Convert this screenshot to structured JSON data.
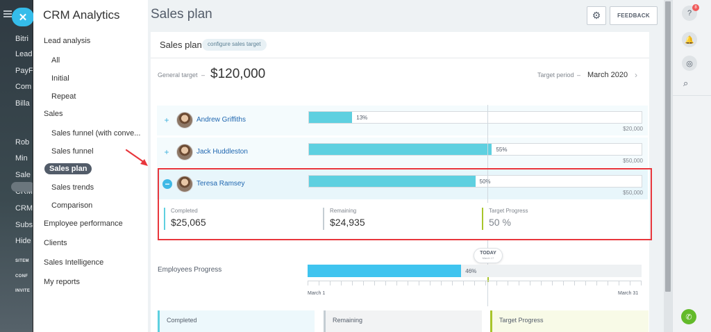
{
  "app": {
    "title": "CRM Analytics",
    "close_icon": "close-icon"
  },
  "background_menu": [
    {
      "label": "Bitri"
    },
    {
      "label": "Lead"
    },
    {
      "label": "PayF"
    },
    {
      "label": "Com"
    },
    {
      "label": "Billa"
    },
    {
      "label": "Rob"
    },
    {
      "label": "Min"
    },
    {
      "label": "Sale"
    },
    {
      "label": "CRM"
    },
    {
      "label": "CRM"
    },
    {
      "label": "Subs"
    },
    {
      "label": "Hide"
    },
    {
      "label": "SITEM"
    },
    {
      "label": "CONF"
    },
    {
      "label": "INVITE"
    }
  ],
  "sidebar": {
    "items": [
      {
        "label": "Lead analysis",
        "kind": "top"
      },
      {
        "label": "All",
        "kind": "sub"
      },
      {
        "label": "Initial",
        "kind": "sub"
      },
      {
        "label": "Repeat",
        "kind": "sub"
      },
      {
        "label": "Sales",
        "kind": "top"
      },
      {
        "label": "Sales funnel (with conve...",
        "kind": "sub"
      },
      {
        "label": "Sales funnel",
        "kind": "sub"
      },
      {
        "label": "Sales plan",
        "kind": "active"
      },
      {
        "label": "Sales trends",
        "kind": "sub"
      },
      {
        "label": "Comparison",
        "kind": "sub"
      },
      {
        "label": "Employee performance",
        "kind": "top"
      },
      {
        "label": "Clients",
        "kind": "top"
      },
      {
        "label": "Sales Intelligence",
        "kind": "top"
      },
      {
        "label": "My reports",
        "kind": "top"
      }
    ]
  },
  "header": {
    "page_title": "Sales plan",
    "feedback_label": "FEEDBACK",
    "settings_icon": "gear-icon"
  },
  "card": {
    "title": "Sales plan",
    "configure_label": "configure sales target",
    "general_target_label": "General target",
    "general_target_value": "$120,000",
    "target_period_label": "Target period",
    "target_period_value": "March 2020"
  },
  "employees": [
    {
      "name": "Andrew Griffiths",
      "percent_label": "13%",
      "progress": 13,
      "target": "$20,000",
      "expanded": false
    },
    {
      "name": "Jack Huddleston",
      "percent_label": "55%",
      "progress": 55,
      "target": "$50,000",
      "expanded": false
    },
    {
      "name": "Teresa Ramsey",
      "percent_label": "50%",
      "progress": 50,
      "target": "$50,000",
      "expanded": true
    }
  ],
  "selected_detail": {
    "completed_label": "Completed",
    "completed_value": "$25,065",
    "remaining_label": "Remaining",
    "remaining_value": "$24,935",
    "progress_label": "Target Progress",
    "progress_value": "50 %"
  },
  "today": {
    "label": "TODAY",
    "date": "March 17"
  },
  "employees_progress": {
    "label": "Employees Progress",
    "percent_label": "46%",
    "progress": 46,
    "start": "March 1",
    "end": "March 31"
  },
  "summary": {
    "completed_label": "Completed",
    "remaining_label": "Remaining",
    "progress_label": "Target Progress"
  },
  "colors": {
    "accent": "#3fc4ef",
    "bar": "#5ed0e0",
    "highlight": "#e8363c",
    "progress_green": "#a8c52b"
  }
}
